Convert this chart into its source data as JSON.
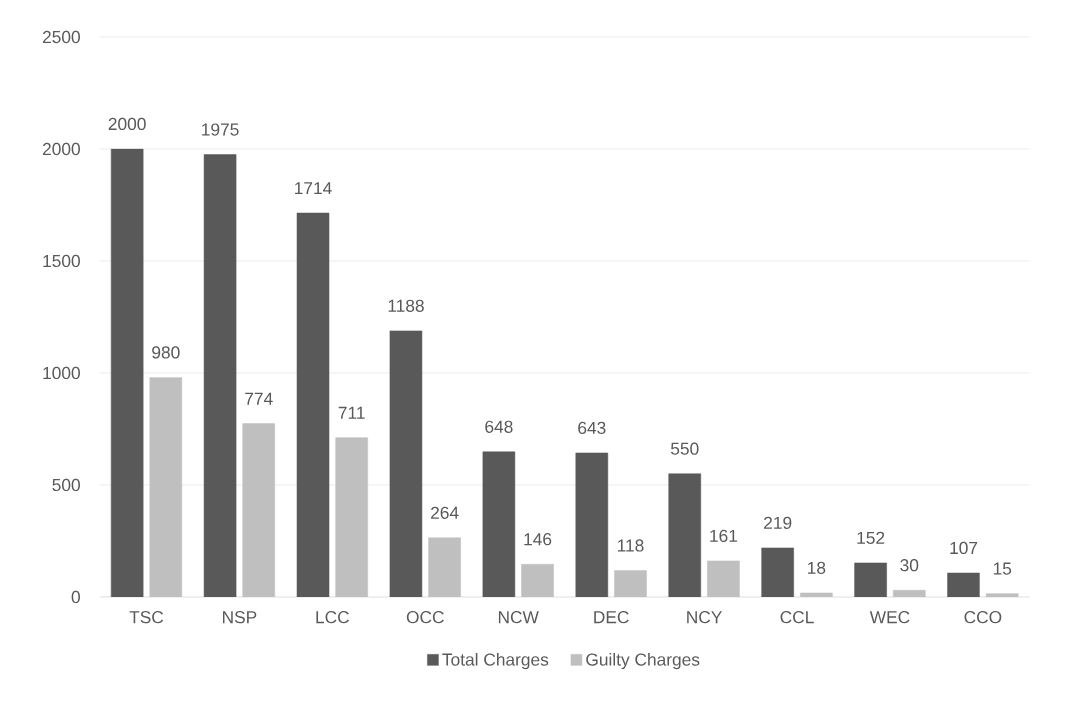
{
  "chart_data": {
    "type": "bar",
    "categories": [
      "TSC",
      "NSP",
      "LCC",
      "OCC",
      "NCW",
      "DEC",
      "NCY",
      "CCL",
      "WEC",
      "CCO"
    ],
    "series": [
      {
        "name": "Total Charges",
        "color": "#595959",
        "values": [
          2000,
          1975,
          1714,
          1188,
          648,
          643,
          550,
          219,
          152,
          107
        ]
      },
      {
        "name": "Guilty Charges",
        "color": "#bfbfbf",
        "values": [
          980,
          774,
          711,
          264,
          146,
          118,
          161,
          18,
          30,
          15
        ]
      }
    ],
    "ylim": [
      0,
      2500
    ],
    "yticks": [
      0,
      500,
      1000,
      1500,
      2000,
      2500
    ],
    "grid": "y",
    "legend": "bottom",
    "data_labels": true
  }
}
